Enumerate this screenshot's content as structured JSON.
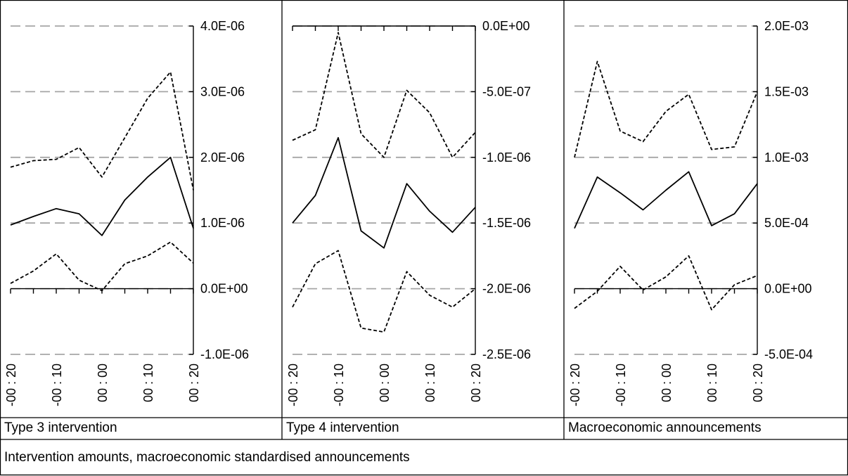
{
  "caption": "Intervention amounts, macroeconomic standardised announcements",
  "chart_data": [
    {
      "type": "line",
      "label": "Type 3 intervention",
      "x": [
        "-00 : 20",
        "-00 : 15",
        "-00 : 10",
        "-00 : 05",
        "00 : 00",
        "00 : 05",
        "00 : 10",
        "00 : 15",
        "00 : 20"
      ],
      "xticklabels": [
        "-00 : 20",
        "-00 : 10",
        "00 : 00",
        "00 : 10",
        "00 : 20"
      ],
      "yticklabels": [
        "4.0E-06",
        "3.0E-06",
        "2.0E-06",
        "1.0E-06",
        "0.0E+00",
        "-1.0E-06"
      ],
      "ylim": [
        -1e-06,
        4e-06
      ],
      "yticks": [
        4e-06,
        3e-06,
        2e-06,
        1e-06,
        0.0,
        -1e-06
      ],
      "grid": true,
      "y_axis_side": "right",
      "series": [
        {
          "style": "dashed",
          "values": [
            1.85e-06,
            1.95e-06,
            1.97e-06,
            2.15e-06,
            1.7e-06,
            2.3e-06,
            2.9e-06,
            3.3e-06,
            1.5e-06
          ]
        },
        {
          "style": "solid",
          "values": [
            9.7e-07,
            1.1e-06,
            1.22e-06,
            1.14e-06,
            8.1e-07,
            1.35e-06,
            1.7e-06,
            2e-06,
            9.2e-07
          ]
        },
        {
          "style": "dashed",
          "values": [
            8e-08,
            2.7e-07,
            5.3e-07,
            1.3e-07,
            -3e-08,
            3.8e-07,
            5e-07,
            7.1e-07,
            3.9e-07
          ]
        }
      ]
    },
    {
      "type": "line",
      "label": "Type 4 intervention",
      "x": [
        "-00 : 20",
        "-00 : 15",
        "-00 : 10",
        "-00 : 05",
        "00 : 00",
        "00 : 05",
        "00 : 10",
        "00 : 15",
        "00 : 20"
      ],
      "xticklabels": [
        "-00 : 20",
        "-00 : 10",
        "00 : 00",
        "00 : 10",
        "00 : 20"
      ],
      "yticklabels": [
        "0.0E+00",
        "-5.0E-07",
        "-1.0E-06",
        "-1.5E-06",
        "-2.0E-06",
        "-2.5E-06"
      ],
      "ylim": [
        -2.5e-06,
        0.0
      ],
      "yticks": [
        0.0,
        -5e-07,
        -1e-06,
        -1.5e-06,
        -2e-06,
        -2.5e-06
      ],
      "grid": true,
      "y_axis_side": "right",
      "series": [
        {
          "style": "dashed",
          "values": [
            -8.7e-07,
            -7.9e-07,
            -5e-08,
            -8.2e-07,
            -1e-06,
            -4.9e-07,
            -6.6e-07,
            -1e-06,
            -8.1e-07
          ]
        },
        {
          "style": "solid",
          "values": [
            -1.5e-06,
            -1.29e-06,
            -8.5e-07,
            -1.56e-06,
            -1.69e-06,
            -1.2e-06,
            -1.41e-06,
            -1.57e-06,
            -1.38e-06
          ]
        },
        {
          "style": "dashed",
          "values": [
            -2.14e-06,
            -1.81e-06,
            -1.71e-06,
            -2.3e-06,
            -2.33e-06,
            -1.87e-06,
            -2.05e-06,
            -2.14e-06,
            -2e-06
          ]
        }
      ]
    },
    {
      "type": "line",
      "label": "Macroeconomic announcements",
      "x": [
        "-00 : 20",
        "-00 : 15",
        "-00 : 10",
        "-00 : 05",
        "00 : 00",
        "00 : 05",
        "00 : 10",
        "00 : 15",
        "00 : 20"
      ],
      "xticklabels": [
        "-00 : 20",
        "-00 : 10",
        "00 : 00",
        "00 : 10",
        "00 : 20"
      ],
      "yticklabels": [
        "2.0E-03",
        "1.5E-03",
        "1.0E-03",
        "5.0E-04",
        "0.0E+00",
        "-5.0E-04"
      ],
      "ylim": [
        -0.0005,
        0.002
      ],
      "yticks": [
        0.002,
        0.0015,
        0.001,
        0.0005,
        0.0,
        -0.0005
      ],
      "grid": true,
      "y_axis_side": "right",
      "series": [
        {
          "style": "dashed",
          "values": [
            0.001,
            0.00173,
            0.0012,
            0.00112,
            0.00135,
            0.00148,
            0.00106,
            0.00108,
            0.0015
          ]
        },
        {
          "style": "solid",
          "values": [
            0.00046,
            0.00085,
            0.00073,
            0.0006,
            0.00075,
            0.00089,
            0.00048,
            0.00057,
            0.0008
          ]
        },
        {
          "style": "dashed",
          "values": [
            -0.00015,
            -2e-05,
            0.00017,
            -1e-05,
            9e-05,
            0.00025,
            -0.00016,
            3e-05,
            0.0001
          ]
        }
      ]
    }
  ]
}
